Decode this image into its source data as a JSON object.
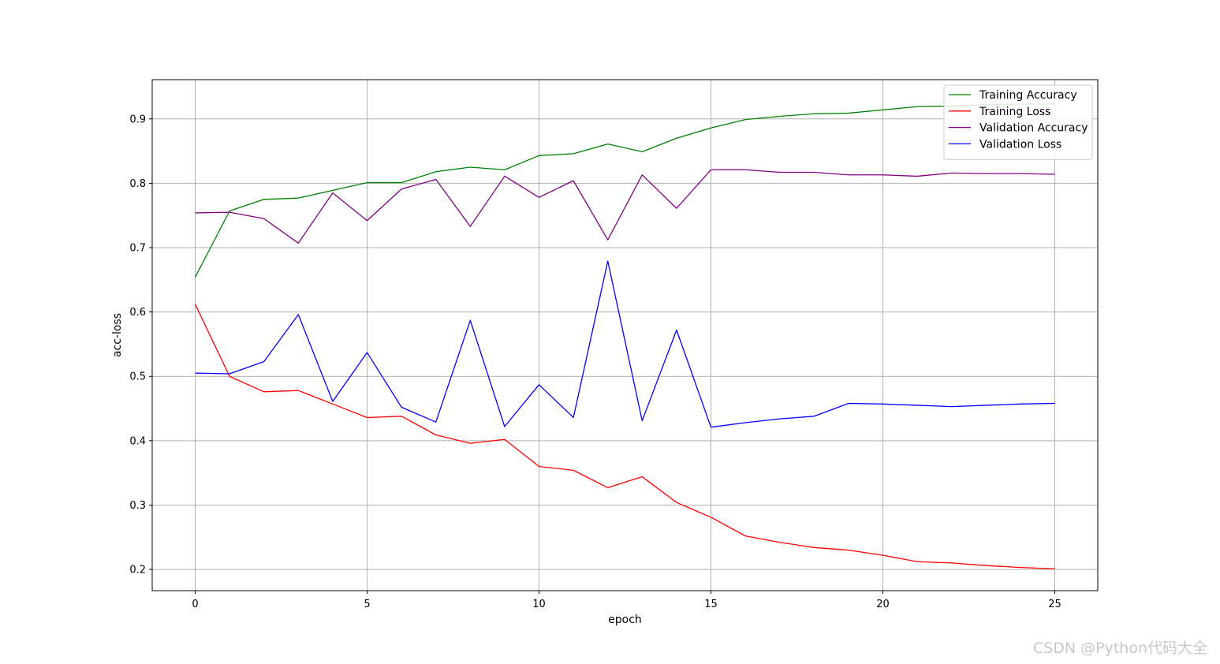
{
  "chart_data": {
    "type": "line",
    "title": "",
    "xlabel": "epoch",
    "ylabel": "acc-loss",
    "xlim": [
      -1.25,
      26.25
    ],
    "ylim": [
      0.167,
      0.961
    ],
    "xticks": [
      0,
      5,
      10,
      15,
      20,
      25
    ],
    "yticks": [
      0.2,
      0.3,
      0.4,
      0.5,
      0.6,
      0.7,
      0.8,
      0.9
    ],
    "grid": true,
    "legend_position": "top-right",
    "x": [
      0,
      1,
      2,
      3,
      4,
      5,
      6,
      7,
      8,
      9,
      10,
      11,
      12,
      13,
      14,
      15,
      16,
      17,
      18,
      19,
      20,
      21,
      22,
      23,
      24,
      25
    ],
    "series": [
      {
        "name": "Training Accuracy",
        "color": "#008000",
        "values": [
          0.654,
          0.757,
          0.775,
          0.777,
          0.789,
          0.801,
          0.801,
          0.818,
          0.825,
          0.821,
          0.843,
          0.846,
          0.861,
          0.849,
          0.87,
          0.886,
          0.899,
          0.904,
          0.908,
          0.909,
          0.914,
          0.919,
          0.92,
          0.922,
          0.923,
          0.923
        ]
      },
      {
        "name": "Training Loss",
        "color": "#ff0000",
        "values": [
          0.612,
          0.5,
          0.476,
          0.478,
          0.457,
          0.436,
          0.438,
          0.409,
          0.396,
          0.402,
          0.36,
          0.354,
          0.327,
          0.344,
          0.304,
          0.281,
          0.252,
          0.242,
          0.234,
          0.23,
          0.222,
          0.212,
          0.21,
          0.206,
          0.203,
          0.201
        ]
      },
      {
        "name": "Validation Accuracy",
        "color": "#800080",
        "values": [
          0.754,
          0.755,
          0.745,
          0.707,
          0.785,
          0.742,
          0.791,
          0.806,
          0.733,
          0.811,
          0.778,
          0.804,
          0.712,
          0.813,
          0.761,
          0.821,
          0.821,
          0.817,
          0.817,
          0.813,
          0.813,
          0.811,
          0.816,
          0.815,
          0.815,
          0.814
        ]
      },
      {
        "name": "Validation Loss",
        "color": "#0000ff",
        "values": [
          0.505,
          0.504,
          0.523,
          0.596,
          0.461,
          0.537,
          0.452,
          0.429,
          0.587,
          0.422,
          0.487,
          0.436,
          0.679,
          0.431,
          0.572,
          0.421,
          0.428,
          0.434,
          0.438,
          0.458,
          0.457,
          0.455,
          0.453,
          0.455,
          0.457,
          0.458
        ]
      }
    ]
  },
  "watermark": "CSDN @Python代码大全"
}
